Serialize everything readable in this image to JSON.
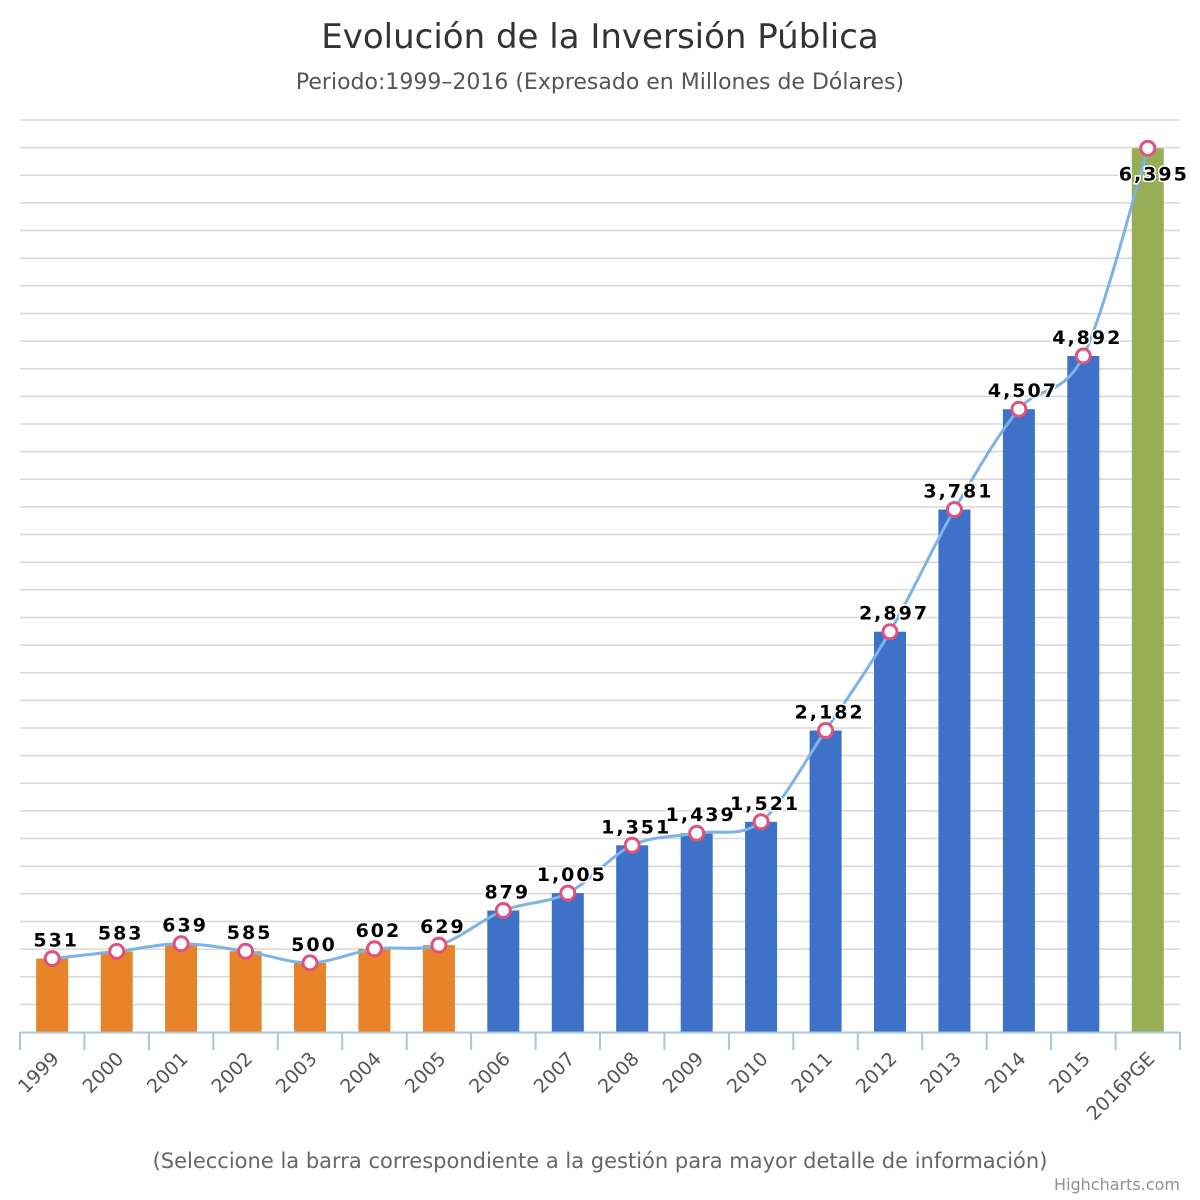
{
  "chart_data": {
    "type": "bar",
    "title": "Evolución de la Inversión Pública",
    "subtitle": "Periodo:1999–2016 (Expresado en Millones de Dólares)",
    "caption": "(Seleccione la barra correspondiente a la gestión para mayor detalle de información)",
    "credits": "Highcharts.com",
    "categories": [
      "1999",
      "2000",
      "2001",
      "2002",
      "2003",
      "2004",
      "2005",
      "2006",
      "2007",
      "2008",
      "2009",
      "2010",
      "2011",
      "2012",
      "2013",
      "2014",
      "2015",
      "2016PGE"
    ],
    "values": [
      531,
      583,
      639,
      585,
      500,
      602,
      629,
      879,
      1005,
      1351,
      1439,
      1521,
      2182,
      2897,
      3781,
      4507,
      4892,
      6395
    ],
    "labels": [
      "531",
      "583",
      "639",
      "585",
      "500",
      "602",
      "629",
      "879",
      "1,005",
      "1,351",
      "1,439",
      "1,521",
      "2,182",
      "2,897",
      "3,781",
      "4,507",
      "4,892",
      "6,395"
    ],
    "bar_groups": [
      {
        "from": 0,
        "to": 6,
        "color": "#E8832A"
      },
      {
        "from": 7,
        "to": 16,
        "color": "#3D72C8"
      },
      {
        "from": 17,
        "to": 17,
        "color": "#98AE56"
      }
    ],
    "line": {
      "type": "spline",
      "color": "#7EB3E6",
      "marker_fill": "#ffffff",
      "marker_stroke": "#E0527E"
    },
    "ylim": [
      0,
      6600
    ],
    "grid": true,
    "legend": "none",
    "xlabel": "",
    "ylabel": ""
  }
}
